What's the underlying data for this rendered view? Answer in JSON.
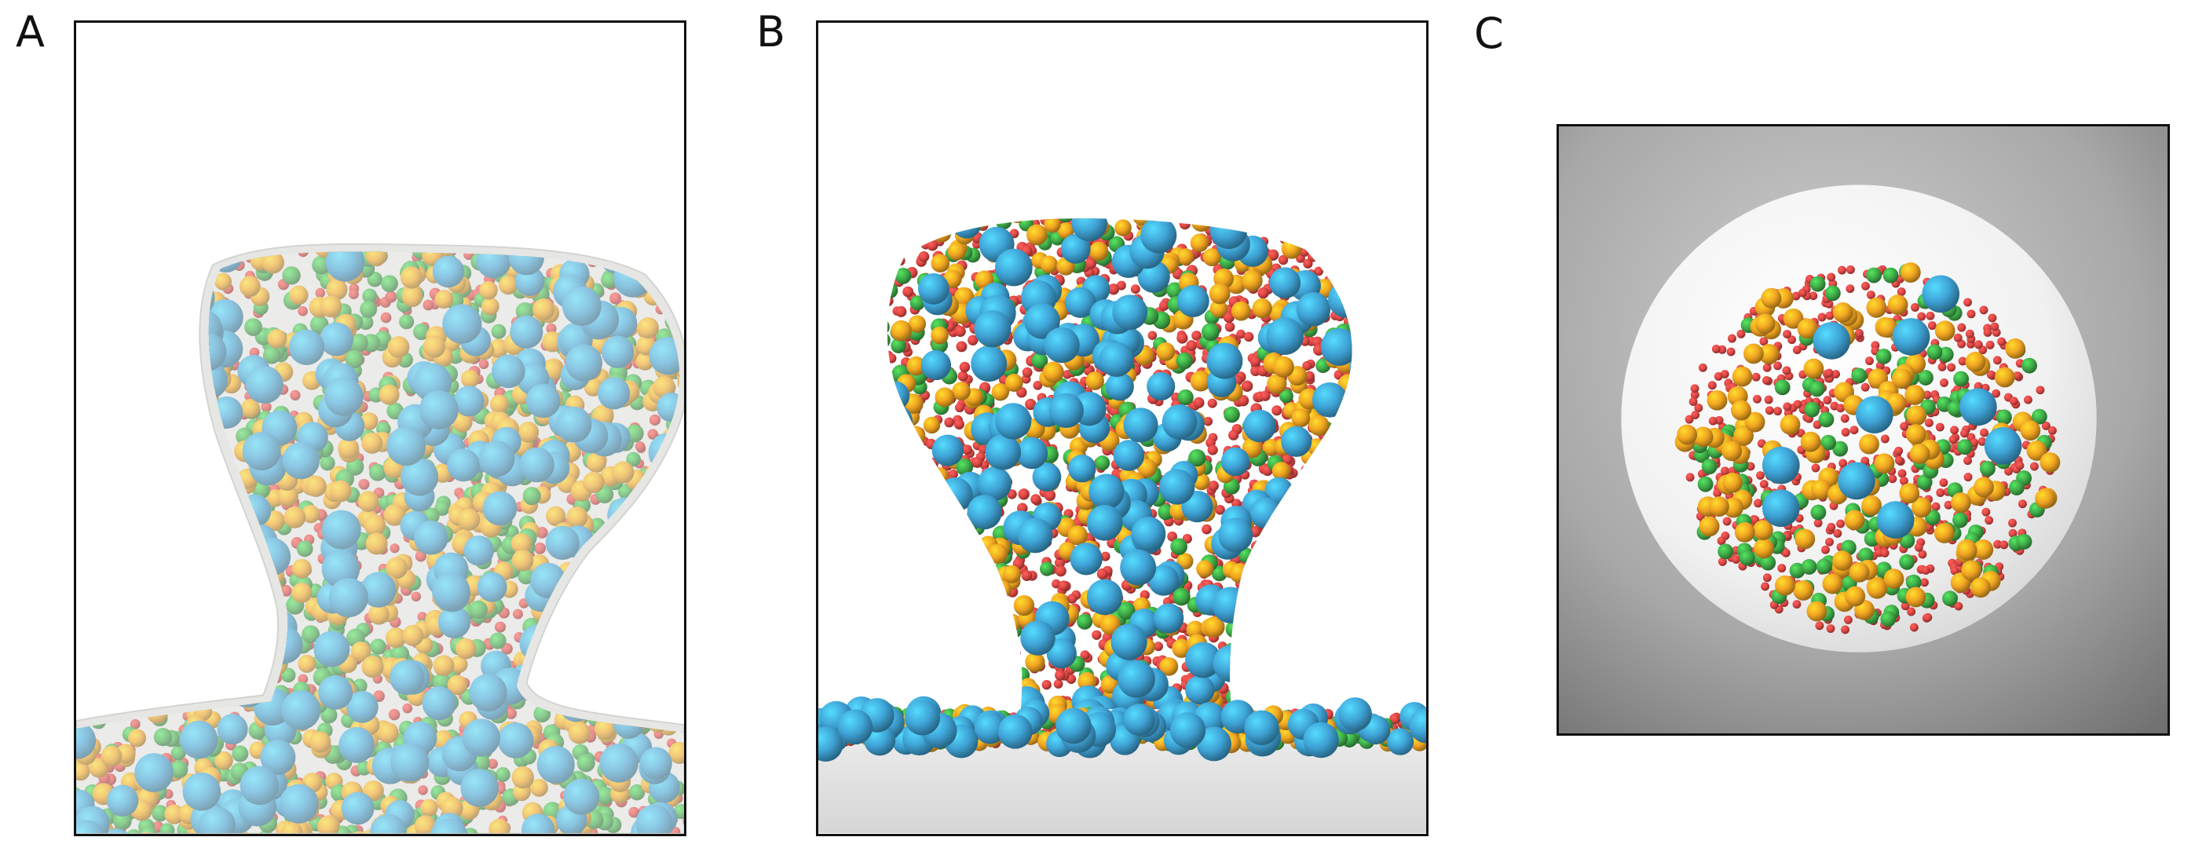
{
  "panels": [
    {
      "id": "a",
      "label": "A"
    },
    {
      "id": "b",
      "label": "B"
    },
    {
      "id": "c",
      "label": "C"
    }
  ],
  "colors": {
    "blue": "#3fa3d6",
    "orange": "#f0a421",
    "green": "#3fab48",
    "red": "#dd4744"
  }
}
